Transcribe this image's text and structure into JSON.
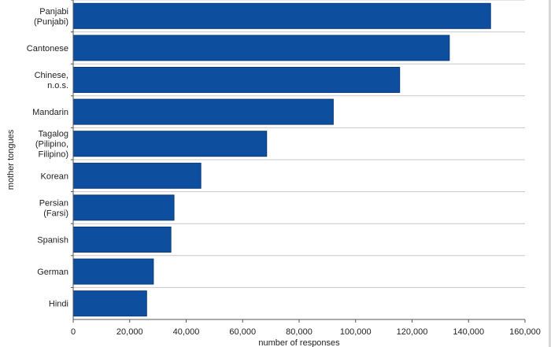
{
  "chart_data": {
    "type": "bar",
    "orientation": "horizontal",
    "title": "",
    "xlabel": "number of responses",
    "ylabel": "mother tongues",
    "categories": [
      [
        "Panjabi",
        "(Punjabi)"
      ],
      [
        "Cantonese"
      ],
      [
        "Chinese,",
        "n.o.s."
      ],
      [
        "Mandarin"
      ],
      [
        "Tagalog",
        "(Pilipino,",
        "Filipino)"
      ],
      [
        "Korean"
      ],
      [
        "Persian",
        "(Farsi)"
      ],
      [
        "Spanish"
      ],
      [
        "German"
      ],
      [
        "Hindi"
      ]
    ],
    "values": [
      147800,
      133200,
      115600,
      92100,
      68500,
      45200,
      35700,
      34600,
      28400,
      26000
    ],
    "xlim": [
      0,
      160000
    ],
    "xticks": [
      0,
      20000,
      40000,
      60000,
      80000,
      100000,
      120000,
      140000,
      160000
    ],
    "xtick_labels": [
      "0",
      "20,000",
      "40,000",
      "60,000",
      "80,000",
      "100,000",
      "120,000",
      "140,000",
      "160,000"
    ],
    "grid": true,
    "legend": "none",
    "colors": {
      "bar_fill": "#0d4f9e",
      "bar_stroke": "#0a3a78",
      "grid": "#c8c8c8",
      "axis": "#555555"
    }
  }
}
